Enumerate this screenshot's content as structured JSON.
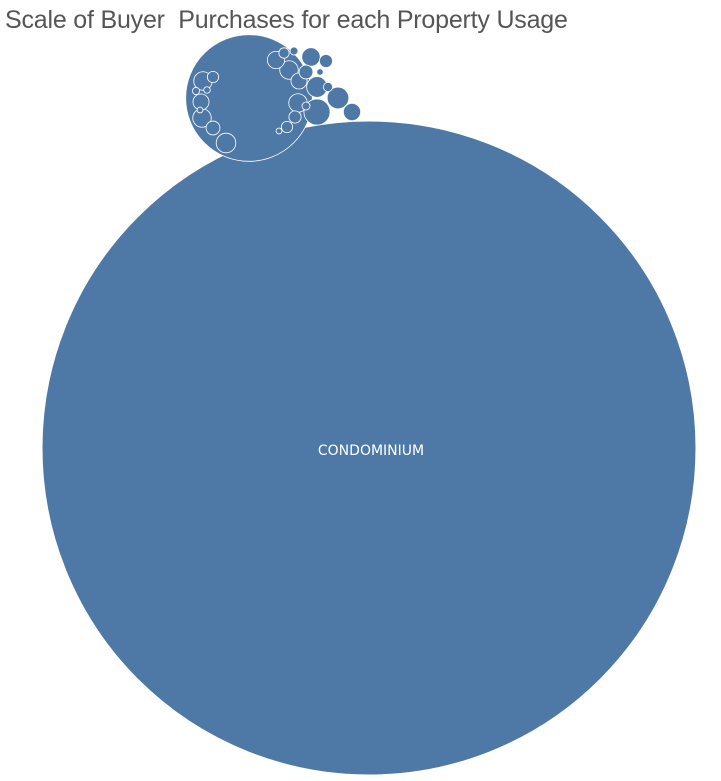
{
  "chart_data": {
    "type": "bubble",
    "title": "Scale of Buyer  Purchases for each Property Usage",
    "color": "#4e79a7",
    "label_color": "#ffffff",
    "bubbles": [
      {
        "label": "CONDOMINIUM",
        "value": 1000
      },
      {
        "label": "",
        "value": 37.5
      },
      {
        "label": "",
        "value": 1.6
      },
      {
        "label": "",
        "value": 1.1
      },
      {
        "label": "",
        "value": 1.0
      },
      {
        "label": "",
        "value": 0.9
      },
      {
        "label": "",
        "value": 0.8
      },
      {
        "label": "",
        "value": 0.8
      },
      {
        "label": "",
        "value": 0.8
      },
      {
        "label": "",
        "value": 0.8
      },
      {
        "label": "",
        "value": 0.8
      },
      {
        "label": "",
        "value": 0.7
      },
      {
        "label": "",
        "value": 0.7
      },
      {
        "label": "",
        "value": 0.6
      },
      {
        "label": "",
        "value": 0.6
      },
      {
        "label": "",
        "value": 0.45
      },
      {
        "label": "",
        "value": 0.45
      },
      {
        "label": "",
        "value": 0.4
      },
      {
        "label": "",
        "value": 0.35
      },
      {
        "label": "",
        "value": 0.3
      },
      {
        "label": "",
        "value": 0.3
      },
      {
        "label": "",
        "value": 0.25
      },
      {
        "label": "",
        "value": 0.2
      },
      {
        "label": "",
        "value": 0.15
      },
      {
        "label": "",
        "value": 0.15
      },
      {
        "label": "",
        "value": 0.12
      },
      {
        "label": "",
        "value": 0.1
      },
      {
        "label": "",
        "value": 0.1
      },
      {
        "label": "",
        "value": 0.08
      },
      {
        "label": "",
        "value": 0.08
      }
    ]
  }
}
